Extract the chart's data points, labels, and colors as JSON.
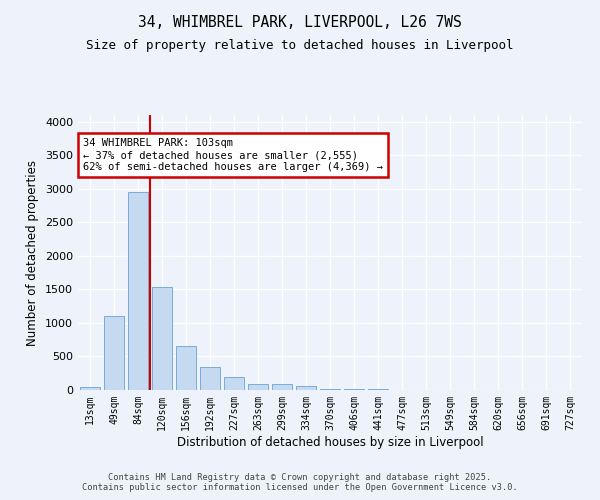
{
  "title1": "34, WHIMBREL PARK, LIVERPOOL, L26 7WS",
  "title2": "Size of property relative to detached houses in Liverpool",
  "xlabel": "Distribution of detached houses by size in Liverpool",
  "ylabel": "Number of detached properties",
  "categories": [
    "13sqm",
    "49sqm",
    "84sqm",
    "120sqm",
    "156sqm",
    "192sqm",
    "227sqm",
    "263sqm",
    "299sqm",
    "334sqm",
    "370sqm",
    "406sqm",
    "441sqm",
    "477sqm",
    "513sqm",
    "549sqm",
    "584sqm",
    "620sqm",
    "656sqm",
    "691sqm",
    "727sqm"
  ],
  "values": [
    50,
    1100,
    2950,
    1530,
    650,
    340,
    195,
    95,
    90,
    65,
    20,
    15,
    10,
    5,
    5,
    3,
    2,
    2,
    1,
    1,
    1
  ],
  "bar_color": "#c5d9f0",
  "bar_edge_color": "#7aadd4",
  "vline_color": "#cc0000",
  "annotation_text": "34 WHIMBREL PARK: 103sqm\n← 37% of detached houses are smaller (2,555)\n62% of semi-detached houses are larger (4,369) →",
  "annotation_box_color": "#cc0000",
  "annotation_text_color": "#000000",
  "ylim": [
    0,
    4100
  ],
  "yticks": [
    0,
    500,
    1000,
    1500,
    2000,
    2500,
    3000,
    3500,
    4000
  ],
  "footer_text": "Contains HM Land Registry data © Crown copyright and database right 2025.\nContains public sector information licensed under the Open Government Licence v3.0.",
  "background_color": "#edf2fb",
  "plot_bg_color": "#edf2fb",
  "grid_color": "#ffffff"
}
